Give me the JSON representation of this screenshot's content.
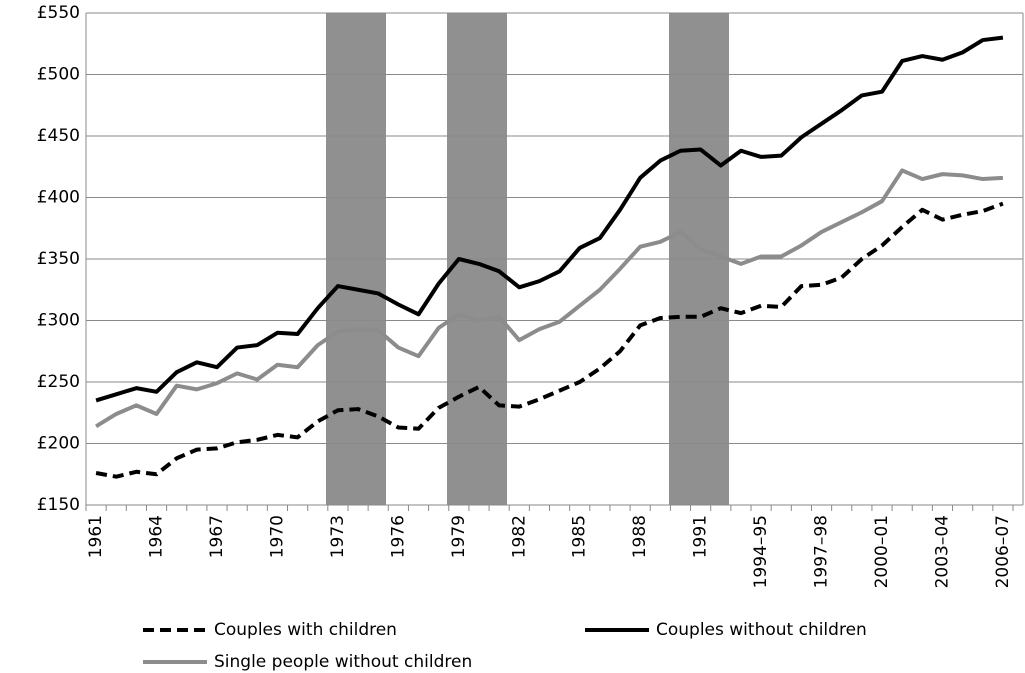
{
  "chart_data": {
    "type": "line",
    "categories": [
      "1961",
      null,
      null,
      "1964",
      null,
      null,
      "1967",
      null,
      null,
      "1970",
      null,
      null,
      "1973",
      null,
      null,
      "1976",
      null,
      null,
      "1979",
      null,
      null,
      "1982",
      null,
      null,
      "1985",
      null,
      null,
      "1988",
      null,
      null,
      "1991",
      null,
      null,
      "1994–95",
      null,
      null,
      "1997–98",
      null,
      null,
      "2000–01",
      null,
      null,
      "2003–04",
      null,
      null,
      "2006–07"
    ],
    "series": [
      {
        "name": "Couples with children",
        "color": "#000000",
        "dashed": true,
        "values": [
          176,
          173,
          177,
          175,
          188,
          195,
          196,
          201,
          203,
          207,
          205,
          218,
          227,
          228,
          222,
          213,
          212,
          229,
          238,
          246,
          231,
          230,
          236,
          243,
          250,
          261,
          275,
          296,
          302,
          303,
          303,
          310,
          306,
          312,
          311,
          328,
          329,
          335,
          350,
          361,
          376,
          390,
          382,
          386,
          389,
          395
        ]
      },
      {
        "name": "Couples without children",
        "color": "#000000",
        "dashed": false,
        "values": [
          235,
          240,
          245,
          242,
          258,
          266,
          262,
          278,
          280,
          290,
          289,
          310,
          328,
          325,
          322,
          313,
          305,
          330,
          350,
          346,
          340,
          327,
          332,
          340,
          359,
          367,
          390,
          416,
          430,
          438,
          439,
          426,
          438,
          433,
          434,
          449,
          460,
          471,
          483,
          486,
          511,
          515,
          512,
          518,
          528,
          530
        ]
      },
      {
        "name": "Single people without children",
        "color": "#8c8c8c",
        "dashed": false,
        "values": [
          214,
          224,
          231,
          224,
          247,
          244,
          249,
          257,
          252,
          264,
          262,
          280,
          291,
          293,
          292,
          278,
          271,
          294,
          305,
          300,
          303,
          284,
          293,
          299,
          312,
          325,
          342,
          360,
          364,
          372,
          358,
          352,
          346,
          352,
          352,
          361,
          372,
          380,
          388,
          397,
          422,
          415,
          419,
          418,
          415,
          416
        ]
      }
    ],
    "ylim": [
      150,
      550
    ],
    "yticks": [
      {
        "value": 150,
        "label": "£150"
      },
      {
        "value": 200,
        "label": "£200"
      },
      {
        "value": 250,
        "label": "£250"
      },
      {
        "value": 300,
        "label": "£300"
      },
      {
        "value": 350,
        "label": "£350"
      },
      {
        "value": 400,
        "label": "£400"
      },
      {
        "value": 450,
        "label": "£450"
      },
      {
        "value": 500,
        "label": "£500"
      },
      {
        "value": 550,
        "label": "£550"
      }
    ],
    "grid": true
  }
}
